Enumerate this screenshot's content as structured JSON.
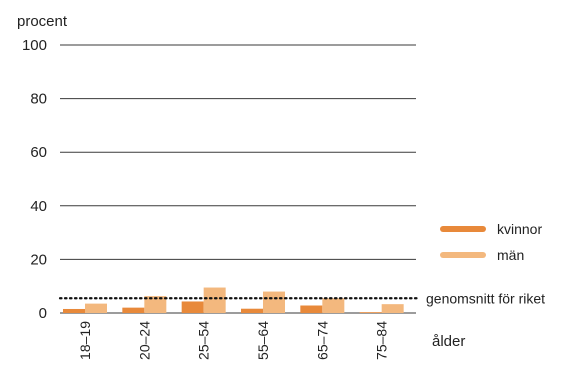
{
  "chart_data": {
    "type": "bar",
    "ylabel": "procent",
    "xlabel": "ålder",
    "ylim": [
      0,
      100
    ],
    "yticks": [
      0,
      20,
      40,
      60,
      80,
      100
    ],
    "categories": [
      "18–19",
      "20–24",
      "25–54",
      "55–64",
      "65–74",
      "75–84"
    ],
    "series": [
      {
        "name": "kvinnor",
        "color": "#e8893a",
        "values": [
          1.5,
          2.0,
          4.3,
          1.6,
          2.8,
          0.3
        ]
      },
      {
        "name": "män",
        "color": "#f3b87e",
        "values": [
          3.5,
          6.3,
          9.5,
          8.0,
          5.5,
          3.3
        ]
      }
    ],
    "reference_line": {
      "label": "genomsnitt för riket",
      "value": 5.5,
      "style": "dotted"
    },
    "legend_position": "right",
    "grid": true
  }
}
